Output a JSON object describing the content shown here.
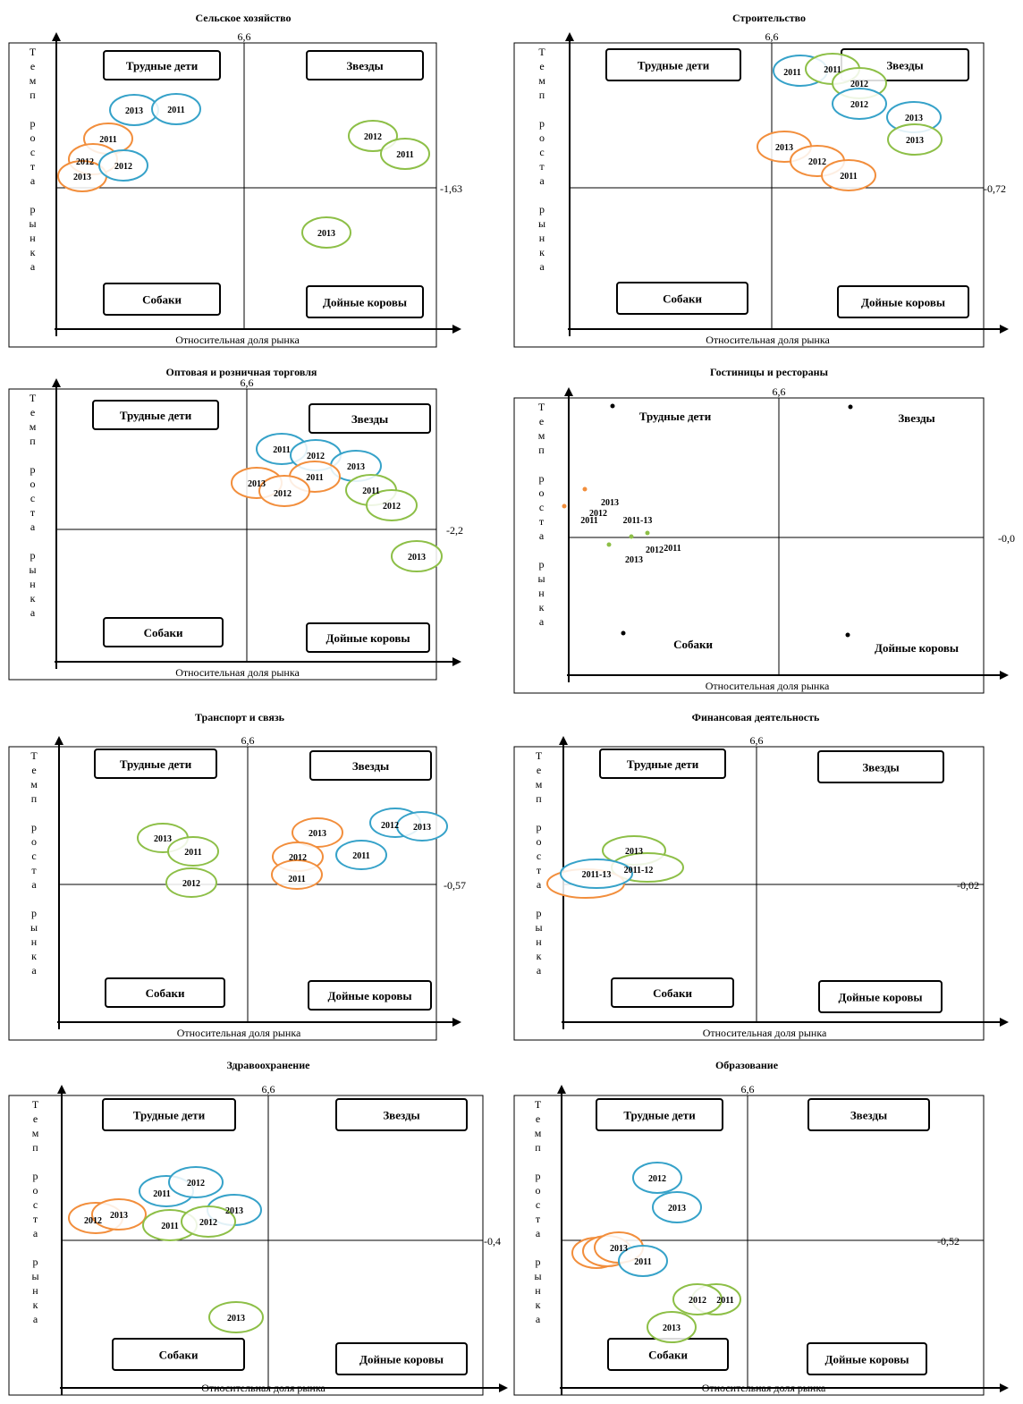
{
  "colors": {
    "blue": "#36a2c9",
    "orange": "#f28e3c",
    "green": "#8dbf47",
    "axis": "#000000",
    "frame": "#000000"
  },
  "common": {
    "xlabel": "Относительная доля рынка",
    "ylabel": "Темп роста рынка",
    "quadrants": [
      "Трудные дети",
      "Звезды",
      "Собаки",
      "Дойные коровы"
    ]
  },
  "chart_data": [
    {
      "type": "scatter",
      "title": "Сельское хозяйство",
      "x_threshold": "6,6",
      "y_threshold": "-1,63",
      "points": [
        {
          "label": "2013",
          "series": "blue"
        },
        {
          "label": "2011",
          "series": "blue"
        },
        {
          "label": "2011",
          "series": "orange"
        },
        {
          "label": "2012",
          "series": "orange"
        },
        {
          "label": "2013",
          "series": "orange"
        },
        {
          "label": "2012",
          "series": "blue"
        },
        {
          "label": "2012",
          "series": "green"
        },
        {
          "label": "2011",
          "series": "green"
        },
        {
          "label": "2013",
          "series": "green"
        }
      ]
    },
    {
      "type": "scatter",
      "title": "Строительство",
      "x_threshold": "6,6",
      "y_threshold": "-0,72",
      "points": [
        {
          "label": "2011",
          "series": "blue"
        },
        {
          "label": "2011",
          "series": "green"
        },
        {
          "label": "2012",
          "series": "green"
        },
        {
          "label": "2012",
          "series": "blue"
        },
        {
          "label": "2013",
          "series": "blue"
        },
        {
          "label": "2013",
          "series": "green"
        },
        {
          "label": "2013",
          "series": "orange"
        },
        {
          "label": "2012",
          "series": "orange"
        },
        {
          "label": "2011",
          "series": "orange"
        }
      ]
    },
    {
      "type": "scatter",
      "title": "Оптовая и розничная торговля",
      "x_threshold": "6,6",
      "y_threshold": "-2,2",
      "points": [
        {
          "label": "2011",
          "series": "blue"
        },
        {
          "label": "2012",
          "series": "blue"
        },
        {
          "label": "2013",
          "series": "blue"
        },
        {
          "label": "2011",
          "series": "orange"
        },
        {
          "label": "2013",
          "series": "orange"
        },
        {
          "label": "2012",
          "series": "orange"
        },
        {
          "label": "2011",
          "series": "green"
        },
        {
          "label": "2012",
          "series": "green"
        },
        {
          "label": "2013",
          "series": "green"
        }
      ]
    },
    {
      "type": "scatter",
      "title": "Гостиницы и рестораны",
      "x_threshold": "6,6",
      "y_threshold": "-0,0",
      "points": [
        {
          "label": "2013",
          "series": "orange"
        },
        {
          "label": "2012",
          "series": "orange"
        },
        {
          "label": "2011",
          "series": "orange"
        },
        {
          "label": "2011-13",
          "series": "blue"
        },
        {
          "label": "2011",
          "series": "green"
        },
        {
          "label": "2012",
          "series": "green"
        },
        {
          "label": "2013",
          "series": "green"
        }
      ]
    },
    {
      "type": "scatter",
      "title": "Транспорт и связь",
      "x_threshold": "6,6",
      "y_threshold": "-0,57",
      "points": [
        {
          "label": "2013",
          "series": "green"
        },
        {
          "label": "2011",
          "series": "green"
        },
        {
          "label": "2012",
          "series": "green"
        },
        {
          "label": "2013",
          "series": "orange"
        },
        {
          "label": "2012",
          "series": "orange"
        },
        {
          "label": "2011",
          "series": "orange"
        },
        {
          "label": "2011",
          "series": "blue"
        },
        {
          "label": "2012",
          "series": "blue"
        },
        {
          "label": "2013",
          "series": "blue"
        }
      ]
    },
    {
      "type": "scatter",
      "title": "Финансовая деятельность",
      "x_threshold": "6,6",
      "y_threshold": "-0,02",
      "points": [
        {
          "label": "2013",
          "series": "green"
        },
        {
          "label": "2011-12",
          "series": "green"
        },
        {
          "label": "",
          "series": "orange"
        },
        {
          "label": "2011-13",
          "series": "blue"
        }
      ]
    },
    {
      "type": "scatter",
      "title": "Здравоохранение",
      "x_threshold": "6,6",
      "y_threshold": "-0,4",
      "points": [
        {
          "label": "2011",
          "series": "blue"
        },
        {
          "label": "2012",
          "series": "blue"
        },
        {
          "label": "2013",
          "series": "blue"
        },
        {
          "label": "2012",
          "series": "orange"
        },
        {
          "label": "2013",
          "series": "orange"
        },
        {
          "label": "2011",
          "series": "green"
        },
        {
          "label": "2012",
          "series": "green"
        },
        {
          "label": "2013",
          "series": "green"
        }
      ]
    },
    {
      "type": "scatter",
      "title": "Образование",
      "x_threshold": "6,6",
      "y_threshold": "-0,52",
      "points": [
        {
          "label": "2012",
          "series": "blue"
        },
        {
          "label": "2013",
          "series": "blue"
        },
        {
          "label": "",
          "series": "orange"
        },
        {
          "label": "",
          "series": "orange"
        },
        {
          "label": "2013",
          "series": "orange"
        },
        {
          "label": "2011",
          "series": "blue"
        },
        {
          "label": "2011",
          "series": "green"
        },
        {
          "label": "2012",
          "series": "green"
        },
        {
          "label": "2013",
          "series": "green"
        }
      ]
    }
  ]
}
